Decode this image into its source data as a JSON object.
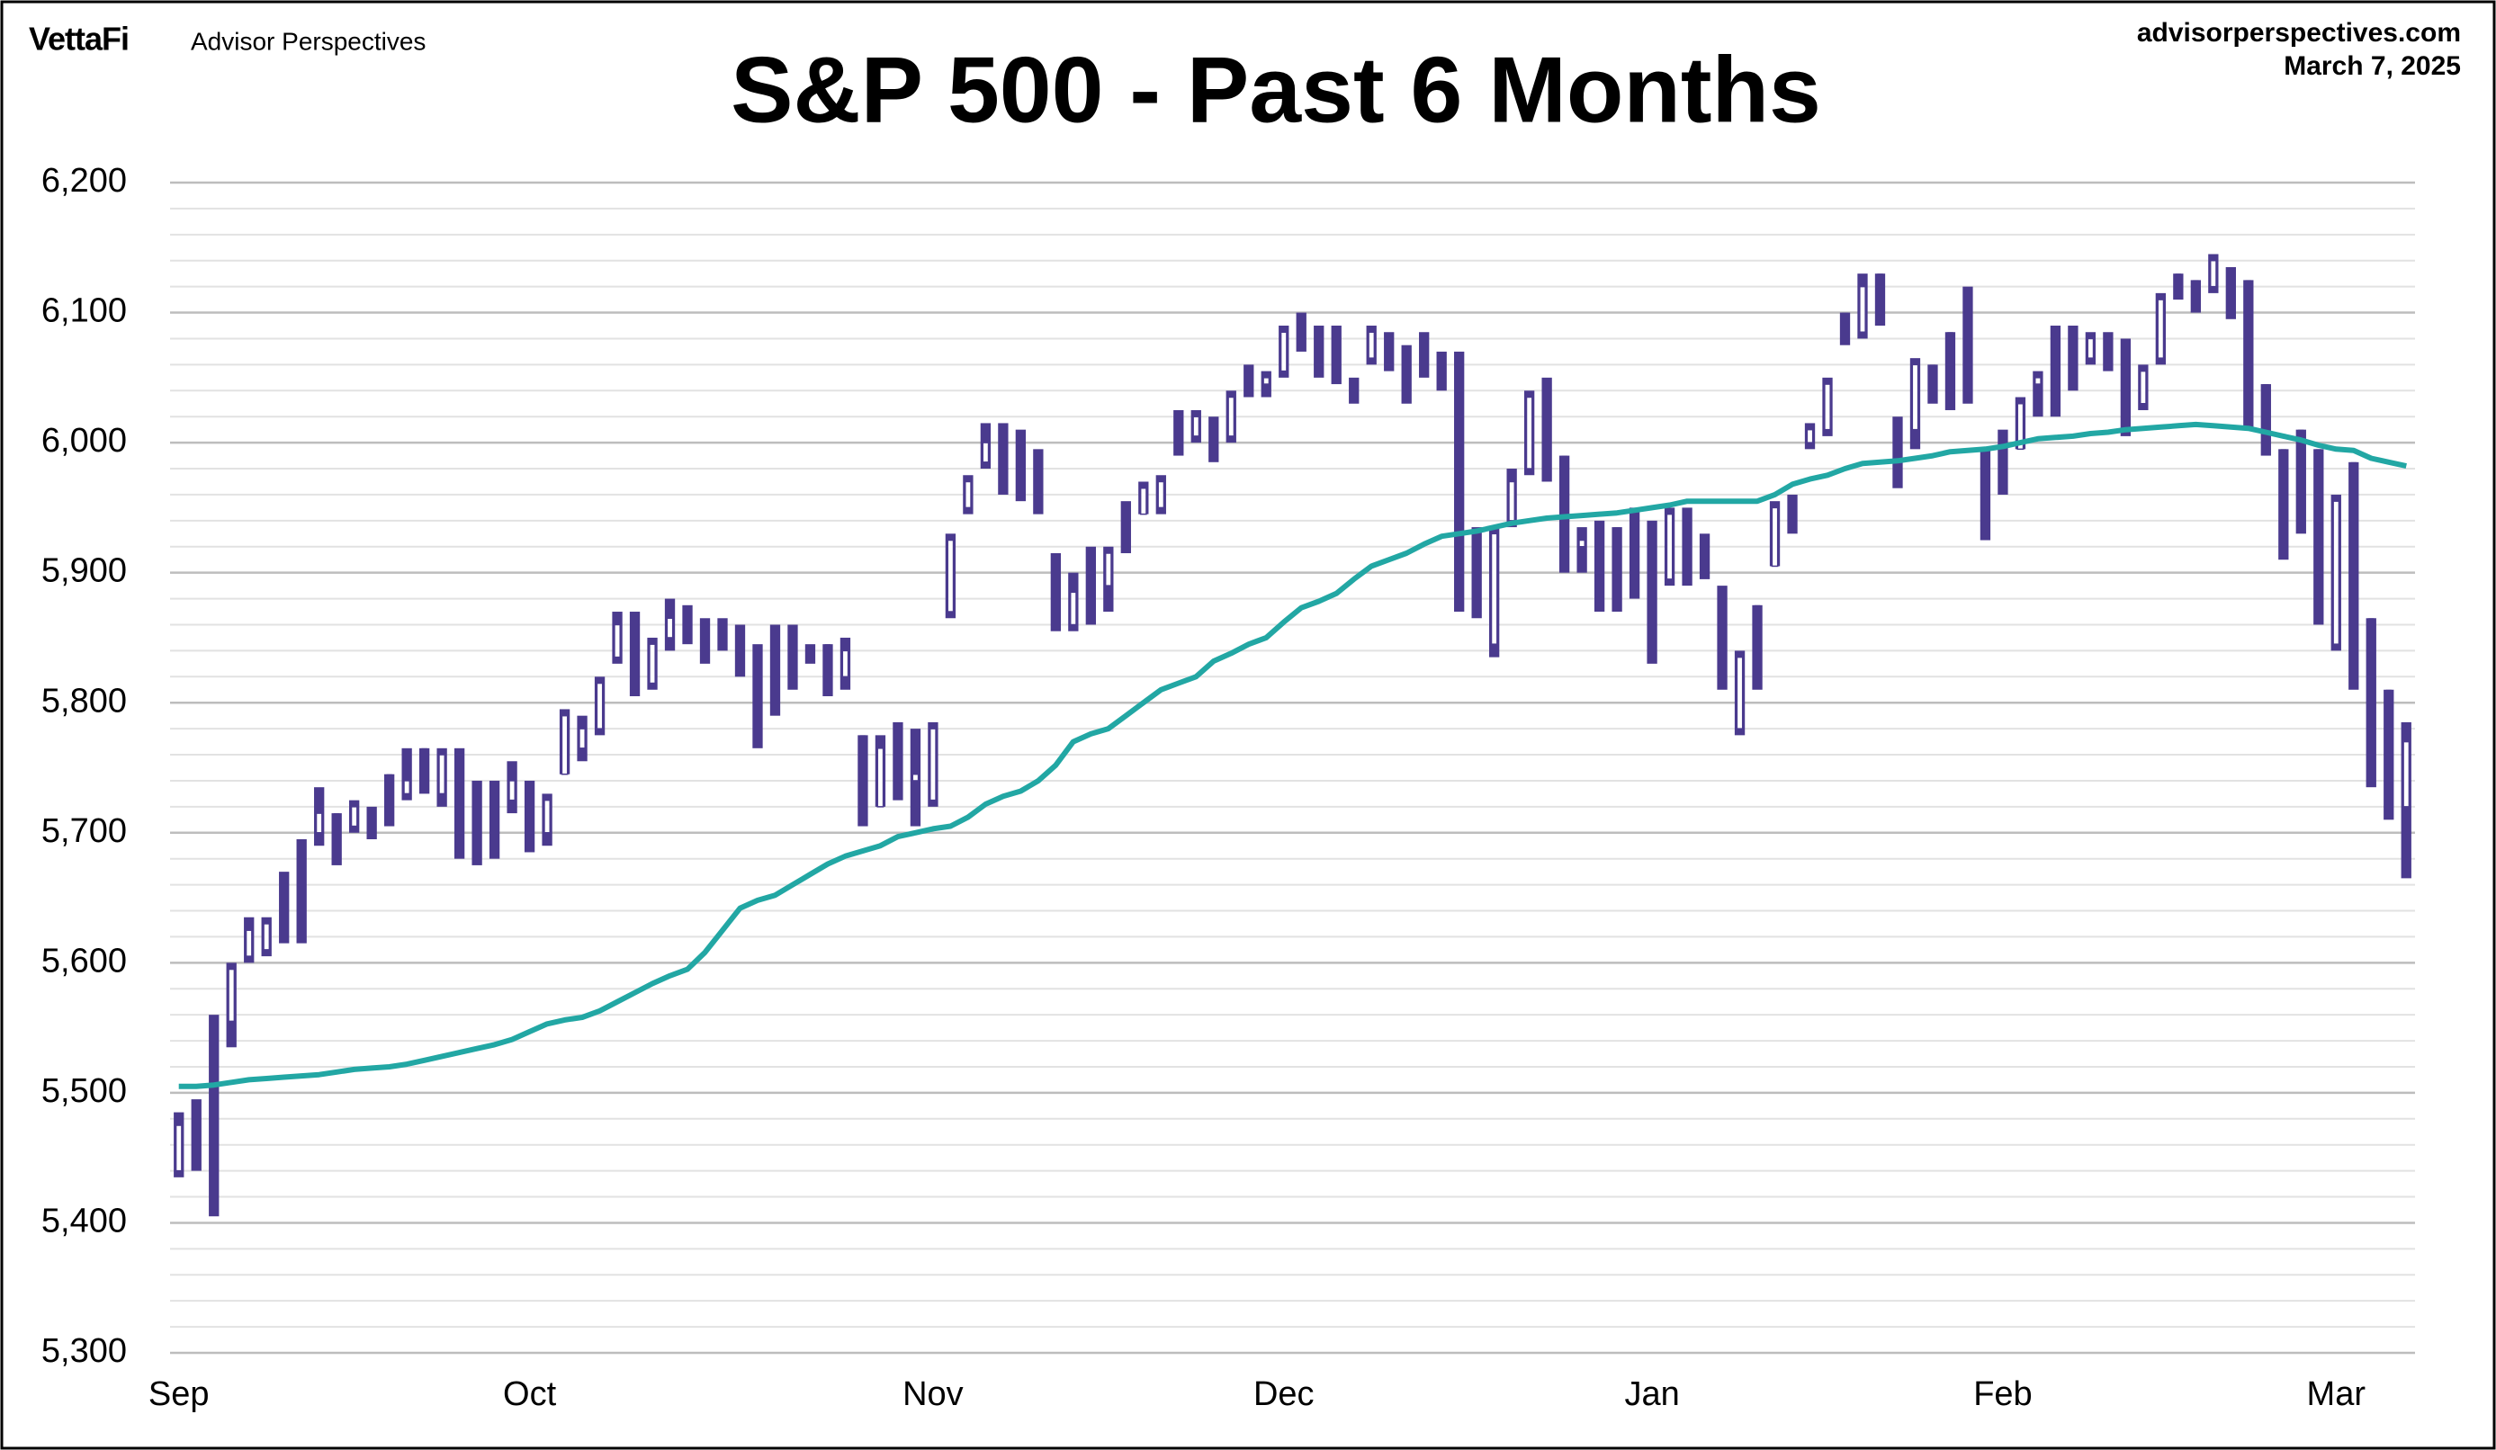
{
  "header": {
    "brand": "VettaFi",
    "subbrand": "Advisor Perspectives",
    "site": "advisorperspectives.com",
    "date": "March 7, 2025"
  },
  "chart_data": {
    "type": "candlestick",
    "title": "S&P 500 - Past 6 Months",
    "categories": [
      "Sep",
      null,
      null,
      null,
      null,
      null,
      null,
      null,
      null,
      null,
      null,
      null,
      null,
      null,
      null,
      null,
      null,
      null,
      null,
      null,
      "Oct",
      null,
      null,
      null,
      null,
      null,
      null,
      null,
      null,
      null,
      null,
      null,
      null,
      null,
      null,
      null,
      null,
      null,
      null,
      null,
      null,
      null,
      null,
      "Nov",
      null,
      null,
      null,
      null,
      null,
      null,
      null,
      null,
      null,
      null,
      null,
      null,
      null,
      null,
      null,
      null,
      null,
      null,
      null,
      "Dec",
      null,
      null,
      null,
      null,
      null,
      null,
      null,
      null,
      null,
      null,
      null,
      null,
      null,
      null,
      null,
      null,
      null,
      null,
      null,
      null,
      "Jan",
      null,
      null,
      null,
      null,
      null,
      null,
      null,
      null,
      null,
      null,
      null,
      null,
      null,
      null,
      null,
      null,
      null,
      null,
      null,
      "Feb",
      null,
      null,
      null,
      null,
      null,
      null,
      null,
      null,
      null,
      null,
      null,
      null,
      null,
      null,
      null,
      null,
      null,
      null,
      "Mar",
      null,
      null,
      null,
      null
    ],
    "open": [
      5440,
      5475,
      5500,
      5555,
      5605,
      5610,
      5660,
      5695,
      5700,
      5715,
      5705,
      5710,
      5745,
      5730,
      5765,
      5730,
      5720,
      5725,
      5715,
      5725,
      5730,
      5700,
      5745,
      5765,
      5780,
      5835,
      5860,
      5815,
      5850,
      5865,
      5860,
      5855,
      5845,
      5830,
      5810,
      5855,
      5840,
      5845,
      5820,
      5775,
      5720,
      5780,
      5740,
      5725,
      5870,
      5950,
      5985,
      6010,
      5990,
      5985,
      5915,
      5860,
      5880,
      5890,
      5925,
      5945,
      5950,
      6020,
      6005,
      6015,
      6005,
      6045,
      6045,
      6055,
      6080,
      6085,
      6090,
      6040,
      6065,
      6080,
      6070,
      6080,
      6065,
      6050,
      5880,
      5845,
      5940,
      5980,
      6030,
      5990,
      5920,
      5935,
      5935,
      5935,
      5935,
      5895,
      5940,
      5925,
      5880,
      5780,
      5875,
      5905,
      5950,
      6000,
      6010,
      6100,
      6085,
      6130,
      6000,
      6010,
      6060,
      6085,
      6050,
      5990,
      6000,
      5995,
      6045,
      6085,
      6070,
      6065,
      6080,
      6035,
      6030,
      6065,
      6130,
      6125,
      6120,
      6130,
      6125,
      6045,
      5995,
      6010,
      5995,
      5845,
      5985,
      5865,
      5810,
      5720
    ],
    "high": [
      5485,
      5495,
      5560,
      5600,
      5635,
      5635,
      5670,
      5695,
      5735,
      5715,
      5725,
      5720,
      5745,
      5765,
      5765,
      5765,
      5765,
      5740,
      5740,
      5755,
      5740,
      5730,
      5795,
      5790,
      5820,
      5870,
      5870,
      5850,
      5880,
      5875,
      5865,
      5865,
      5860,
      5845,
      5860,
      5860,
      5845,
      5845,
      5850,
      5775,
      5775,
      5785,
      5780,
      5785,
      5930,
      5975,
      6015,
      6015,
      6010,
      5995,
      5915,
      5900,
      5920,
      5920,
      5955,
      5970,
      5975,
      6025,
      6025,
      6020,
      6040,
      6060,
      6055,
      6090,
      6100,
      6090,
      6090,
      6050,
      6090,
      6085,
      6075,
      6085,
      6070,
      6070,
      5935,
      5935,
      5980,
      6040,
      6050,
      5990,
      5935,
      5940,
      5935,
      5950,
      5940,
      5950,
      5950,
      5930,
      5890,
      5840,
      5875,
      5955,
      5960,
      6015,
      6050,
      6100,
      6130,
      6130,
      6020,
      6065,
      6060,
      6085,
      6120,
      5995,
      6010,
      6035,
      6055,
      6090,
      6090,
      6085,
      6085,
      6080,
      6060,
      6115,
      6130,
      6125,
      6145,
      6135,
      6125,
      6045,
      5995,
      6010,
      5995,
      5960,
      5985,
      5865,
      5810,
      5785
    ],
    "low": [
      5435,
      5440,
      5405,
      5535,
      5600,
      5605,
      5615,
      5615,
      5690,
      5675,
      5700,
      5695,
      5705,
      5725,
      5730,
      5720,
      5680,
      5675,
      5680,
      5715,
      5685,
      5690,
      5745,
      5755,
      5775,
      5830,
      5805,
      5810,
      5840,
      5845,
      5830,
      5840,
      5820,
      5765,
      5790,
      5810,
      5830,
      5805,
      5810,
      5705,
      5720,
      5725,
      5705,
      5720,
      5865,
      5945,
      5980,
      5960,
      5955,
      5945,
      5855,
      5855,
      5860,
      5870,
      5915,
      5945,
      5945,
      5990,
      6000,
      5985,
      6000,
      6035,
      6035,
      6050,
      6070,
      6050,
      6045,
      6030,
      6060,
      6055,
      6030,
      6050,
      6040,
      5870,
      5865,
      5835,
      5935,
      5975,
      5970,
      5900,
      5900,
      5870,
      5870,
      5880,
      5830,
      5890,
      5890,
      5895,
      5810,
      5775,
      5810,
      5905,
      5930,
      5995,
      6005,
      6075,
      6080,
      6090,
      5965,
      5995,
      6030,
      6025,
      6030,
      5925,
      5960,
      5995,
      6020,
      6020,
      6040,
      6060,
      6055,
      6005,
      6025,
      6060,
      6110,
      6100,
      6115,
      6095,
      6010,
      5990,
      5910,
      5930,
      5860,
      5840,
      5810,
      5735,
      5710,
      5665
    ],
    "close": [
      5475,
      5445,
      5410,
      5595,
      5625,
      5630,
      5620,
      5620,
      5715,
      5680,
      5720,
      5700,
      5715,
      5740,
      5740,
      5760,
      5690,
      5695,
      5700,
      5740,
      5690,
      5725,
      5790,
      5780,
      5815,
      5860,
      5810,
      5845,
      5865,
      5860,
      5840,
      5850,
      5830,
      5800,
      5795,
      5815,
      5835,
      5815,
      5840,
      5710,
      5765,
      5730,
      5745,
      5780,
      5925,
      5970,
      6000,
      5970,
      5960,
      5950,
      5860,
      5885,
      5875,
      5915,
      5920,
      5965,
      5970,
      5995,
      6020,
      5995,
      6035,
      6040,
      6050,
      6085,
      6075,
      6055,
      6050,
      6035,
      6085,
      6060,
      6035,
      6070,
      6045,
      5875,
      5870,
      5930,
      5970,
      6035,
      6000,
      5905,
      5925,
      5880,
      5875,
      5890,
      5840,
      5945,
      5895,
      5905,
      5815,
      5835,
      5812,
      5950,
      5935,
      6010,
      6045,
      6080,
      6120,
      6100,
      5975,
      6060,
      6040,
      6040,
      6035,
      5930,
      5990,
      6030,
      6050,
      6030,
      6045,
      6080,
      6060,
      6010,
      6055,
      6110,
      6115,
      6110,
      6140,
      6100,
      6015,
      5995,
      5915,
      5935,
      5865,
      5955,
      5815,
      5740,
      5715,
      5770
    ],
    "color": "#4a3a8e",
    "ma": {
      "color": "#22a7a4",
      "values": [
        5505,
        5505,
        5506,
        5508,
        5510,
        5511,
        5512,
        5513,
        5514,
        5516,
        5518,
        5519,
        5520,
        5522,
        5525,
        5528,
        5531,
        5534,
        5537,
        5541,
        5547,
        5553,
        5556,
        5558,
        5563,
        5570,
        5577,
        5584,
        5590,
        5595,
        5608,
        5625,
        5642,
        5648,
        5652,
        5660,
        5668,
        5676,
        5682,
        5686,
        5690,
        5697,
        5700,
        5703,
        5705,
        5712,
        5722,
        5728,
        5732,
        5740,
        5752,
        5770,
        5776,
        5780,
        5790,
        5800,
        5810,
        5815,
        5820,
        5832,
        5838,
        5845,
        5850,
        5862,
        5873,
        5878,
        5884,
        5895,
        5905,
        5910,
        5915,
        5922,
        5928,
        5930,
        5932,
        5935,
        5938,
        5940,
        5942,
        5943,
        5944,
        5945,
        5946,
        5948,
        5950,
        5952,
        5955,
        5955,
        5955,
        5955,
        5955,
        5960,
        5968,
        5972,
        5975,
        5980,
        5984,
        5985,
        5986,
        5988,
        5990,
        5993,
        5994,
        5995,
        5997,
        6000,
        6003,
        6004,
        6005,
        6007,
        6008,
        6010,
        6011,
        6012,
        6013,
        6014,
        6013,
        6012,
        6011,
        6008,
        6005,
        6002,
        5998,
        5995,
        5994,
        5988,
        5985,
        5982
      ]
    },
    "ylim": [
      5300,
      6200
    ],
    "yticks": [
      {
        "value": 5300,
        "label": "5,300"
      },
      {
        "value": 5400,
        "label": "5,400"
      },
      {
        "value": 5500,
        "label": "5,500"
      },
      {
        "value": 5600,
        "label": "5,600"
      },
      {
        "value": 5700,
        "label": "5,700"
      },
      {
        "value": 5800,
        "label": "5,800"
      },
      {
        "value": 5900,
        "label": "5,900"
      },
      {
        "value": 6000,
        "label": "6,000"
      },
      {
        "value": 6100,
        "label": "6,100"
      },
      {
        "value": 6200,
        "label": "6,200"
      }
    ],
    "minor_yticks": [
      5320,
      5340,
      5360,
      5380,
      5420,
      5440,
      5460,
      5480,
      5520,
      5540,
      5560,
      5580,
      5620,
      5640,
      5660,
      5680,
      5720,
      5740,
      5760,
      5780,
      5820,
      5840,
      5860,
      5880,
      5920,
      5940,
      5960,
      5980,
      6020,
      6040,
      6060,
      6080,
      6120,
      6140,
      6160,
      6180
    ],
    "grid": true
  }
}
